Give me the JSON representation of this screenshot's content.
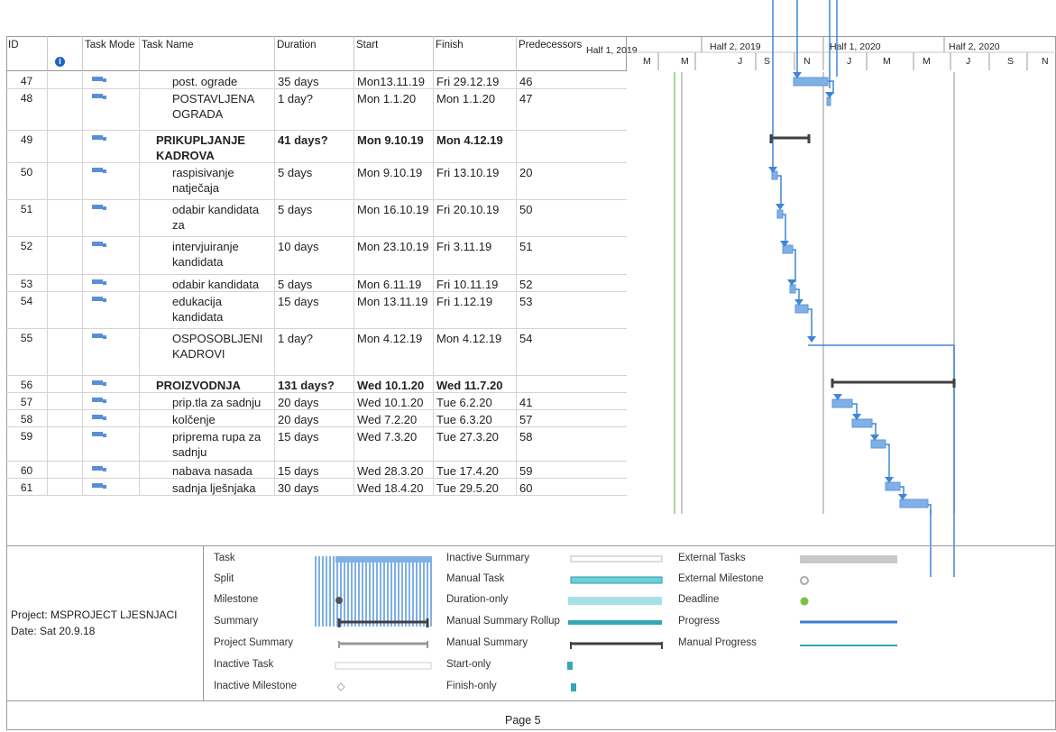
{
  "header": {
    "id": "ID",
    "info": "i",
    "task_mode": "Task Mode",
    "task_name": "Task Name",
    "duration": "Duration",
    "start": "Start",
    "finish": "Finish",
    "predecessors": "Predecessors"
  },
  "timescale": {
    "halves": [
      "Half 1, 2019",
      "Half 2, 2019",
      "Half 1, 2020",
      "Half 2, 2020"
    ],
    "months": [
      "M",
      "M",
      "J",
      "S",
      "N",
      "J",
      "M",
      "M",
      "J",
      "S",
      "N"
    ]
  },
  "tasks": [
    {
      "id": "47",
      "name": "post. ograde",
      "duration": "35 days",
      "start": "Mon13.11.19",
      "finish": "Fri 29.12.19",
      "pred": "46",
      "bold": false
    },
    {
      "id": "48",
      "name": "POSTAVLJENA OGRADA",
      "duration": "1 day?",
      "start": "Mon 1.1.20",
      "finish": "Mon 1.1.20",
      "pred": "47",
      "bold": false
    },
    {
      "id": "49",
      "name": "PRIKUPLJANJE KADROVA",
      "duration": "41 days?",
      "start": "Mon 9.10.19",
      "finish": "Mon 4.12.19",
      "pred": "",
      "bold": true
    },
    {
      "id": "50",
      "name": "raspisivanje natječaja",
      "duration": "5 days",
      "start": "Mon 9.10.19",
      "finish": "Fri 13.10.19",
      "pred": "20",
      "bold": false
    },
    {
      "id": "51",
      "name": "odabir kandidata za",
      "duration": "5 days",
      "start": "Mon 16.10.19",
      "finish": "Fri 20.10.19",
      "pred": "50",
      "bold": false
    },
    {
      "id": "52",
      "name": "intervjuiranje kandidata",
      "duration": "10 days",
      "start": "Mon 23.10.19",
      "finish": "Fri 3.11.19",
      "pred": "51",
      "bold": false
    },
    {
      "id": "53",
      "name": "odabir kandidata",
      "duration": "5 days",
      "start": "Mon 6.11.19",
      "finish": "Fri 10.11.19",
      "pred": "52",
      "bold": false
    },
    {
      "id": "54",
      "name": "edukacija kandidata",
      "duration": "15 days",
      "start": "Mon 13.11.19",
      "finish": "Fri 1.12.19",
      "pred": "53",
      "bold": false
    },
    {
      "id": "55",
      "name": "OSPOSOBLJENI KADROVI",
      "duration": "1 day?",
      "start": "Mon 4.12.19",
      "finish": "Mon 4.12.19",
      "pred": "54",
      "bold": false
    },
    {
      "id": "56",
      "name": "PROIZVODNJA",
      "duration": "131 days?",
      "start": "Wed 10.1.20",
      "finish": "Wed 11.7.20",
      "pred": "",
      "bold": true
    },
    {
      "id": "57",
      "name": "prip.tla za sadnju",
      "duration": "20 days",
      "start": "Wed 10.1.20",
      "finish": "Tue 6.2.20",
      "pred": "41",
      "bold": false
    },
    {
      "id": "58",
      "name": "kolčenje",
      "duration": "20 days",
      "start": "Wed 7.2.20",
      "finish": "Tue 6.3.20",
      "pred": "57",
      "bold": false
    },
    {
      "id": "59",
      "name": "priprema rupa za sadnju",
      "duration": "15 days",
      "start": "Wed 7.3.20",
      "finish": "Tue 27.3.20",
      "pred": "58",
      "bold": false
    },
    {
      "id": "60",
      "name": "nabava nasada",
      "duration": "15 days",
      "start": "Wed 28.3.20",
      "finish": "Tue 17.4.20",
      "pred": "59",
      "bold": false
    },
    {
      "id": "61",
      "name": "sadnja lješnjaka",
      "duration": "30 days",
      "start": "Wed 18.4.20",
      "finish": "Tue 29.5.20",
      "pred": "60",
      "bold": false
    }
  ],
  "project": {
    "line1": "Project: MSPROJECT LJESNJACI",
    "line2": "Date: Sat 20.9.18"
  },
  "legend": {
    "col1": [
      "Task",
      "Split",
      "Milestone",
      "Summary",
      "Project Summary",
      "Inactive Task",
      "Inactive Milestone"
    ],
    "col2": [
      "Inactive Summary",
      "Manual Task",
      "Duration-only",
      "Manual Summary Rollup",
      "Manual Summary",
      "Start-only",
      "Finish-only"
    ],
    "col3": [
      "External Tasks",
      "External Milestone",
      "Deadline",
      "Progress",
      "Manual Progress"
    ]
  },
  "footer": {
    "page": "Page 5"
  },
  "colors": {
    "bar": "#7fb0e6",
    "link": "#3d86d8",
    "summary": "#404040",
    "teal": "#35a6b4"
  }
}
